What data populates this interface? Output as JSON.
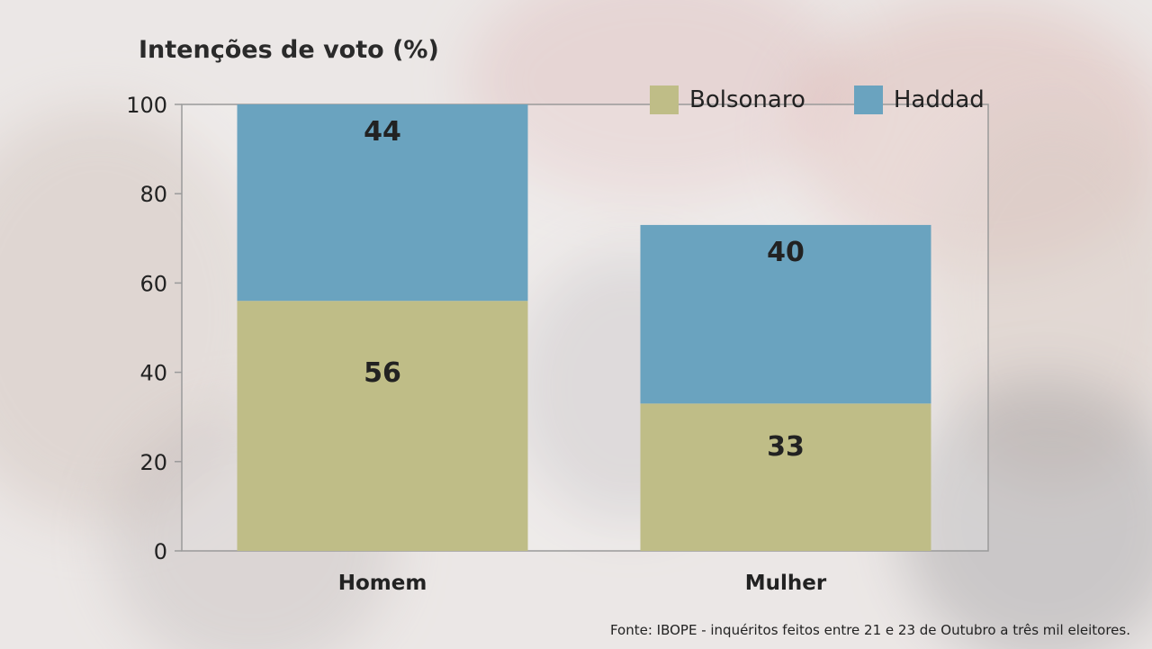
{
  "colors": {
    "bolsonaro": "#bfbd87",
    "haddad": "#6aa3bf",
    "axis": "#9a9a9a"
  },
  "title": "Intenções de voto (%)",
  "source": "Fonte: IBOPE - inquéritos feitos entre 21 e 23 de Outubro a três mil eleitores.",
  "chart_data": {
    "type": "bar",
    "stacked": true,
    "title": "Intenções de voto (%)",
    "categories": [
      "Homem",
      "Mulher"
    ],
    "series": [
      {
        "name": "Bolsonaro",
        "values": [
          56,
          33
        ],
        "color": "#bfbd87"
      },
      {
        "name": "Haddad",
        "values": [
          44,
          40
        ],
        "color": "#6aa3bf"
      }
    ],
    "ylim": [
      0,
      100
    ],
    "yticks": [
      0,
      20,
      40,
      60,
      80,
      100
    ],
    "legend_position": "top-right",
    "grid": false
  }
}
